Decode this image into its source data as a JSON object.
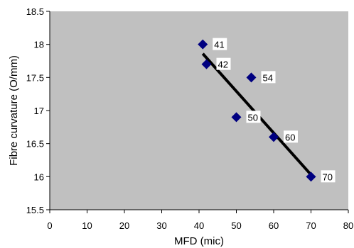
{
  "chart_data": {
    "type": "scatter",
    "title": "",
    "xlabel": "MFD (mic)",
    "ylabel": "Fibre curvature (O/mm)",
    "xlim": [
      0,
      80
    ],
    "ylim": [
      15.5,
      18.5
    ],
    "x_ticks": [
      "0",
      "10",
      "20",
      "30",
      "40",
      "50",
      "60",
      "70",
      "80"
    ],
    "y_ticks": [
      "15.5",
      "16",
      "16.5",
      "17",
      "17.5",
      "18",
      "18.5"
    ],
    "grid": false,
    "plot_background": "#c0c0c0",
    "marker_color": "#000080",
    "trendline_color": "#000000",
    "points": [
      {
        "x": 41,
        "y": 18.0,
        "label": "41"
      },
      {
        "x": 42,
        "y": 17.7,
        "label": "42"
      },
      {
        "x": 54,
        "y": 17.5,
        "label": "54"
      },
      {
        "x": 50,
        "y": 16.9,
        "label": "50"
      },
      {
        "x": 60,
        "y": 16.6,
        "label": "60"
      },
      {
        "x": 70,
        "y": 16.0,
        "label": "70"
      }
    ],
    "trendline": {
      "x": [
        41,
        70
      ],
      "y": [
        17.86,
        16.03
      ]
    }
  }
}
